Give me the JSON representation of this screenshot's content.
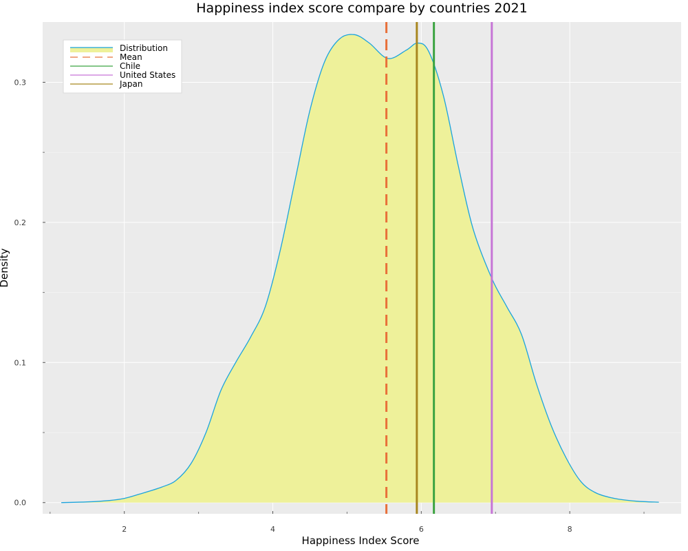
{
  "chart_data": {
    "type": "area",
    "title": "Happiness index score compare by countries 2021",
    "xlabel": "Happiness Index Score",
    "ylabel": "Density",
    "xlim": [
      0.9,
      9.5
    ],
    "ylim": [
      -0.008,
      0.343
    ],
    "x_ticks": [
      {
        "value": 2,
        "label": "2"
      },
      {
        "value": 4,
        "label": "4"
      },
      {
        "value": 6,
        "label": "6"
      },
      {
        "value": 8,
        "label": "8"
      }
    ],
    "x_minor_ticks": [
      1,
      3,
      5,
      7,
      9
    ],
    "y_ticks": [
      {
        "value": 0.0,
        "label": "0.0"
      },
      {
        "value": 0.1,
        "label": "0.1"
      },
      {
        "value": 0.2,
        "label": "0.2"
      },
      {
        "value": 0.3,
        "label": "0.3"
      }
    ],
    "y_minor_ticks": [
      0.05,
      0.15,
      0.25
    ],
    "grid": true,
    "legend_position": "top-left",
    "series": [
      {
        "name": "Distribution",
        "kind": "density",
        "line_color": "#1aa3dd",
        "fill_color": "#eef19a",
        "x": [
          1.15,
          1.5,
          1.8,
          2.0,
          2.2,
          2.5,
          2.7,
          2.9,
          3.1,
          3.3,
          3.5,
          3.7,
          3.9,
          4.1,
          4.3,
          4.5,
          4.7,
          4.9,
          5.1,
          5.3,
          5.55,
          5.8,
          5.95,
          6.1,
          6.3,
          6.5,
          6.7,
          6.95,
          7.15,
          7.35,
          7.55,
          7.75,
          7.95,
          8.15,
          8.35,
          8.6,
          8.9,
          9.2
        ],
        "y": [
          0.0,
          0.0005,
          0.0015,
          0.003,
          0.006,
          0.011,
          0.016,
          0.028,
          0.05,
          0.08,
          0.1,
          0.118,
          0.14,
          0.18,
          0.23,
          0.28,
          0.315,
          0.331,
          0.334,
          0.328,
          0.317,
          0.323,
          0.328,
          0.322,
          0.29,
          0.24,
          0.195,
          0.16,
          0.14,
          0.12,
          0.085,
          0.055,
          0.032,
          0.015,
          0.007,
          0.003,
          0.001,
          0.0003
        ]
      }
    ],
    "reference_lines": [
      {
        "name": "Mean",
        "x": 5.53,
        "color": "#e8703a",
        "style": "dashed"
      },
      {
        "name": "Chile",
        "x": 6.17,
        "color": "#3aa340",
        "style": "solid"
      },
      {
        "name": "United States",
        "x": 6.95,
        "color": "#c675d6",
        "style": "solid"
      },
      {
        "name": "Japan",
        "x": 5.94,
        "color": "#a8861f",
        "style": "solid"
      }
    ]
  }
}
